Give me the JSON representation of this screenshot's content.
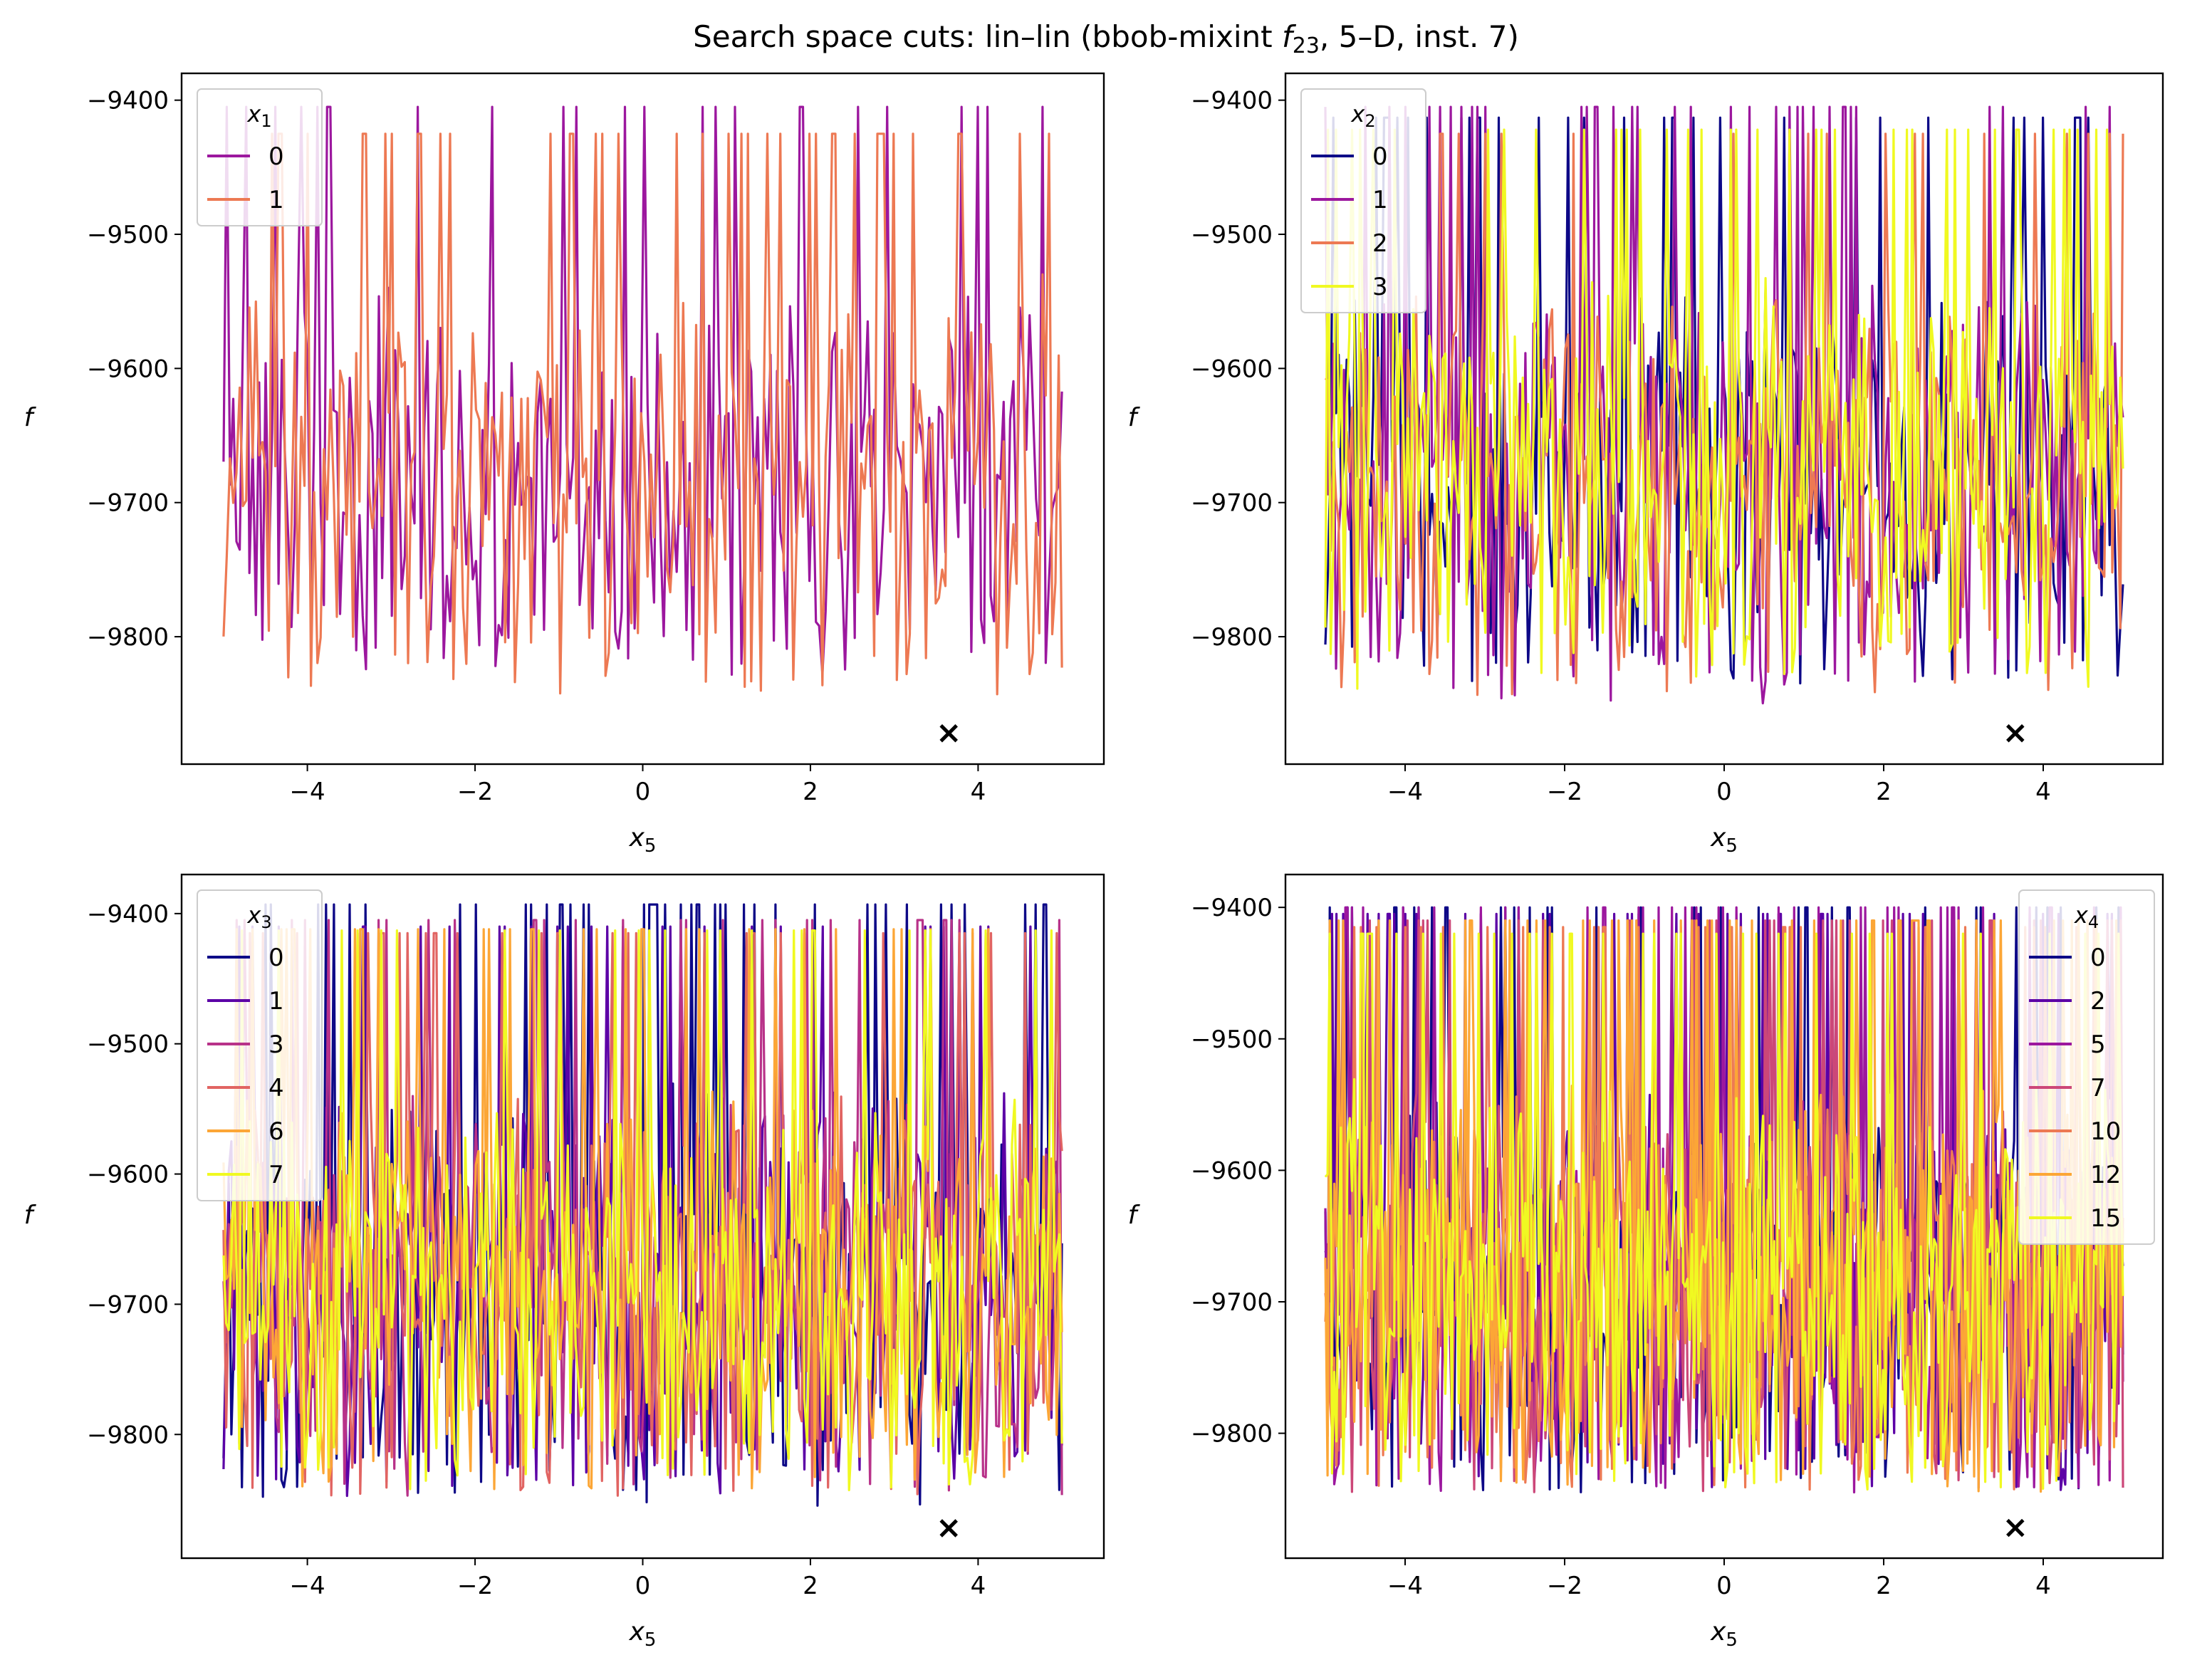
{
  "figure": {
    "title_prefix": "Search space cuts: lin–lin (bbob-mixint ",
    "title_f": "f",
    "title_f_sub": "23",
    "title_suffix": ", 5–D, inst. 7)"
  },
  "chart_data": [
    {
      "type": "line",
      "panel": "top-left",
      "xlabel": "x",
      "xlabel_sub": "5",
      "ylabel": "f",
      "xlim": [
        -5.5,
        5.5
      ],
      "ylim": [
        -9895,
        -9380
      ],
      "xticks": [
        -4,
        -2,
        0,
        2,
        4
      ],
      "xtick_labels": [
        "−4",
        "−2",
        "0",
        "2",
        "4"
      ],
      "yticks": [
        -9400,
        -9500,
        -9600,
        -9700,
        -9800
      ],
      "ytick_labels": [
        "−9400",
        "−9500",
        "−9600",
        "−9700",
        "−9800"
      ],
      "legend": {
        "title": "x",
        "title_sub": "1",
        "placement": "top-left"
      },
      "series": [
        {
          "name": "0",
          "color": "#9c179e",
          "seed": 11,
          "points": 260,
          "min": -9840,
          "max": -9405
        },
        {
          "name": "1",
          "color": "#ed7953",
          "seed": 23,
          "points": 260,
          "min": -9855,
          "max": -9425
        }
      ],
      "optimum": {
        "x": 3.65,
        "y": -9872,
        "marker": "x"
      }
    },
    {
      "type": "line",
      "panel": "top-right",
      "xlabel": "x",
      "xlabel_sub": "5",
      "ylabel": "f",
      "xlim": [
        -5.5,
        5.5
      ],
      "ylim": [
        -9895,
        -9380
      ],
      "xticks": [
        -4,
        -2,
        0,
        2,
        4
      ],
      "xtick_labels": [
        "−4",
        "−2",
        "0",
        "2",
        "4"
      ],
      "yticks": [
        -9400,
        -9500,
        -9600,
        -9700,
        -9800
      ],
      "ytick_labels": [
        "−9400",
        "−9500",
        "−9600",
        "−9700",
        "−9800"
      ],
      "legend": {
        "title": "x",
        "title_sub": "2",
        "placement": "top-left"
      },
      "series": [
        {
          "name": "0",
          "color": "#0d0887",
          "seed": 31,
          "points": 300,
          "min": -9845,
          "max": -9413
        },
        {
          "name": "1",
          "color": "#9c179e",
          "seed": 37,
          "points": 300,
          "min": -9860,
          "max": -9405
        },
        {
          "name": "2",
          "color": "#ed7953",
          "seed": 41,
          "points": 300,
          "min": -9855,
          "max": -9425
        },
        {
          "name": "3",
          "color": "#f0f921",
          "seed": 43,
          "points": 300,
          "min": -9850,
          "max": -9422
        }
      ],
      "optimum": {
        "x": 3.65,
        "y": -9872,
        "marker": "x"
      }
    },
    {
      "type": "line",
      "panel": "bottom-left",
      "xlabel": "x",
      "xlabel_sub": "5",
      "ylabel": "f",
      "xlim": [
        -5.5,
        5.5
      ],
      "ylim": [
        -9895,
        -9370
      ],
      "xticks": [
        -4,
        -2,
        0,
        2,
        4
      ],
      "xtick_labels": [
        "−4",
        "−2",
        "0",
        "2",
        "4"
      ],
      "yticks": [
        -9400,
        -9500,
        -9600,
        -9700,
        -9800
      ],
      "ytick_labels": [
        "−9400",
        "−9500",
        "−9600",
        "−9700",
        "−9800"
      ],
      "legend": {
        "title": "x",
        "title_sub": "3",
        "placement": "top-left"
      },
      "series": [
        {
          "name": "0",
          "color": "#0d0887",
          "seed": 51,
          "points": 320,
          "min": -9865,
          "max": -9393
        },
        {
          "name": "1",
          "color": "#5c01a6",
          "seed": 53,
          "points": 320,
          "min": -9860,
          "max": -9410
        },
        {
          "name": "3",
          "color": "#b83289",
          "seed": 59,
          "points": 320,
          "min": -9858,
          "max": -9405
        },
        {
          "name": "4",
          "color": "#e16462",
          "seed": 61,
          "points": 320,
          "min": -9858,
          "max": -9415
        },
        {
          "name": "6",
          "color": "#fca636",
          "seed": 67,
          "points": 320,
          "min": -9855,
          "max": -9412
        },
        {
          "name": "7",
          "color": "#f0f921",
          "seed": 71,
          "points": 320,
          "min": -9855,
          "max": -9413
        }
      ],
      "optimum": {
        "x": 3.65,
        "y": -9872,
        "marker": "x"
      }
    },
    {
      "type": "line",
      "panel": "bottom-right",
      "xlabel": "x",
      "xlabel_sub": "5",
      "ylabel": "f",
      "xlim": [
        -5.5,
        5.5
      ],
      "ylim": [
        -9895,
        -9375
      ],
      "xticks": [
        -4,
        -2,
        0,
        2,
        4
      ],
      "xtick_labels": [
        "−4",
        "−2",
        "0",
        "2",
        "4"
      ],
      "yticks": [
        -9400,
        -9500,
        -9600,
        -9700,
        -9800
      ],
      "ytick_labels": [
        "−9400",
        "−9500",
        "−9600",
        "−9700",
        "−9800"
      ],
      "legend": {
        "title": "x",
        "title_sub": "4",
        "placement": "top-right"
      },
      "series": [
        {
          "name": "0",
          "color": "#0d0887",
          "seed": 81,
          "points": 360,
          "min": -9855,
          "max": -9400
        },
        {
          "name": "2",
          "color": "#5c01a6",
          "seed": 83,
          "points": 360,
          "min": -9855,
          "max": -9405
        },
        {
          "name": "5",
          "color": "#9c179e",
          "seed": 89,
          "points": 360,
          "min": -9855,
          "max": -9400
        },
        {
          "name": "7",
          "color": "#cc4778",
          "seed": 97,
          "points": 360,
          "min": -9855,
          "max": -9410
        },
        {
          "name": "10",
          "color": "#ed7953",
          "seed": 101,
          "points": 360,
          "min": -9855,
          "max": -9415
        },
        {
          "name": "12",
          "color": "#fca636",
          "seed": 103,
          "points": 360,
          "min": -9855,
          "max": -9410
        },
        {
          "name": "15",
          "color": "#f0f921",
          "seed": 107,
          "points": 360,
          "min": -9855,
          "max": -9420
        }
      ],
      "optimum": {
        "x": 3.65,
        "y": -9872,
        "marker": "x"
      }
    }
  ]
}
